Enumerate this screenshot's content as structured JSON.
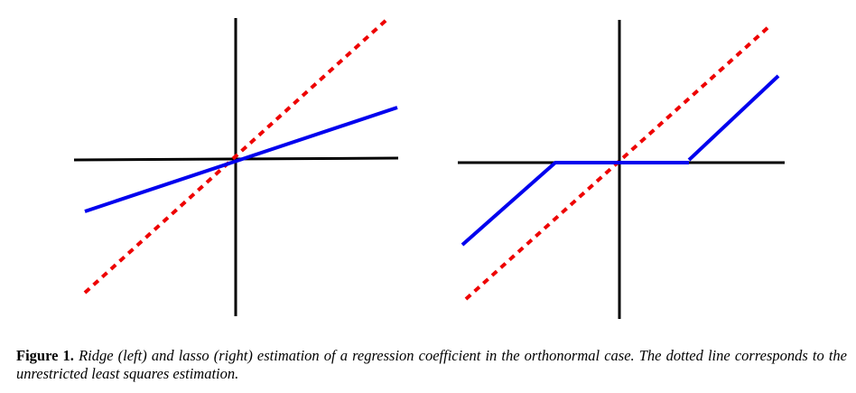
{
  "figure": {
    "caption_label": "Figure 1.",
    "caption_text": "Ridge (left) and lasso (right) estimation of a regression coefficient in the orthonormal case. The dotted line corresponds to the unrestricted least squares estimation.",
    "colors": {
      "axes": "#000000",
      "estimate_line": "#0000ee",
      "least_squares_line": "#ee0000"
    }
  },
  "chart_data": [
    {
      "type": "line",
      "title": "",
      "series": [
        {
          "x": [
            -1,
            1
          ],
          "y": [
            -1,
            1
          ],
          "style": "dotted"
        },
        {
          "x": [
            -1,
            1
          ],
          "y": [
            -0.33,
            0.33
          ],
          "style": "solid"
        }
      ]
    },
    {
      "type": "line",
      "title": "",
      "series": [
        {
          "x": [
            -1,
            1
          ],
          "y": [
            -1,
            1
          ],
          "style": "dotted"
        },
        {
          "x": [
            -1,
            -0.4,
            0.45,
            1
          ],
          "y": [
            -0.55,
            0,
            0,
            0.55
          ],
          "style": "solid"
        }
      ]
    }
  ]
}
